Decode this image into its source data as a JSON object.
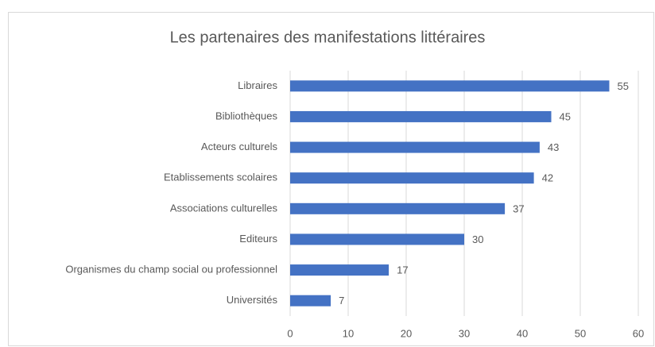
{
  "chart_data": {
    "type": "bar",
    "orientation": "horizontal",
    "title": "Les partenaires des manifestations littéraires",
    "categories": [
      "Libraires",
      "Bibliothèques",
      "Acteurs culturels",
      "Etablissements scolaires",
      "Associations culturelles",
      "Editeurs",
      "Organismes du champ social ou professionnel",
      "Universités"
    ],
    "values": [
      55,
      45,
      43,
      42,
      37,
      30,
      17,
      7
    ],
    "color": "#4472c4",
    "xlim": [
      0,
      60
    ],
    "xticks": [
      0,
      10,
      20,
      30,
      40,
      50,
      60
    ],
    "grid": true
  }
}
